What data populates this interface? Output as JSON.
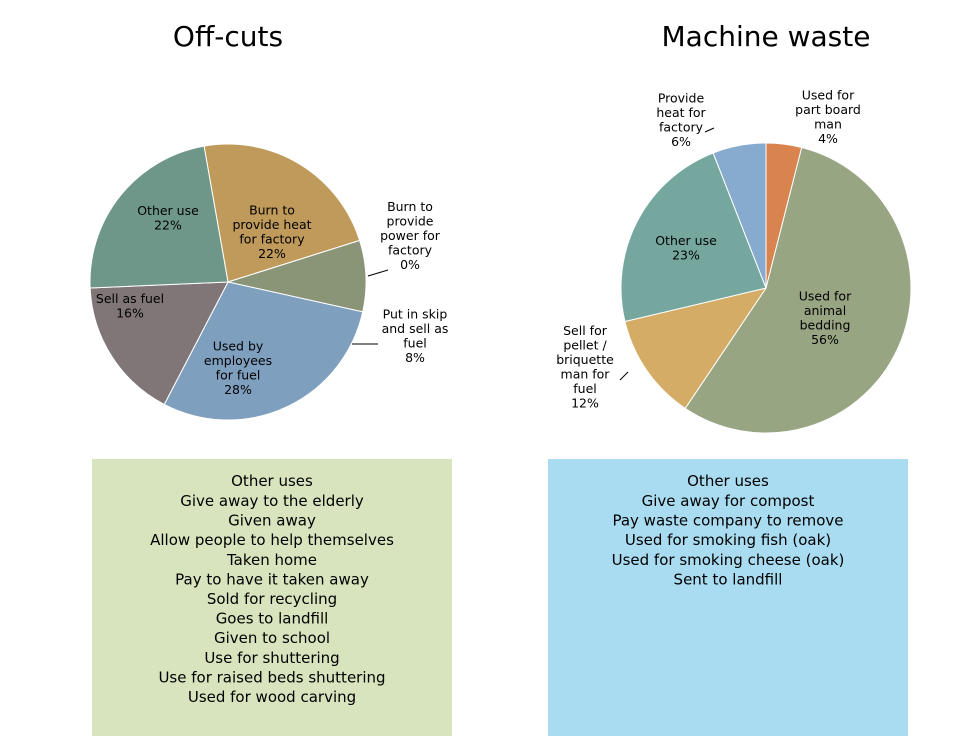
{
  "chart_data": [
    {
      "type": "pie",
      "title": "Off-cuts",
      "categories": [
        "Burn to provide heat for factory",
        "Burn to provide power for factory",
        "Put in skip and sell as fuel",
        "Used by employees for fuel",
        "Sell as fuel",
        "Other use"
      ],
      "values": [
        22,
        0,
        8,
        28,
        16,
        22
      ],
      "value_labels": [
        "22%",
        "0%",
        "8%",
        "28%",
        "16%",
        "22%"
      ],
      "colors": [
        "#bf9a5a",
        "#a6a6a6",
        "#8a9477",
        "#7f9fbf",
        "#807678",
        "#6e978a"
      ]
    },
    {
      "type": "pie",
      "title": "Machine waste",
      "categories": [
        "Used for part board man",
        "Used for animal bedding",
        "Sell for pellet / briquette man for fuel",
        "Other use",
        "Provide heat for factory"
      ],
      "values": [
        4,
        56,
        12,
        23,
        6
      ],
      "value_labels": [
        "4%",
        "56%",
        "12%",
        "23%",
        "6%"
      ],
      "colors": [
        "#d9834f",
        "#98a583",
        "#d4ac66",
        "#75a79f",
        "#86abce"
      ]
    }
  ],
  "boxes": [
    {
      "title": "Other uses",
      "items": [
        "Give away to the elderly",
        "Given away",
        "Allow people to help themselves",
        "Taken home",
        "Pay to have it taken away",
        "Sold for recycling",
        "Goes to landfill",
        "Given to school",
        "Use for shuttering",
        "Use for raised beds shuttering",
        "Used for wood carving"
      ]
    },
    {
      "title": "Other uses",
      "items": [
        "Give away for compost",
        "Pay waste company to remove",
        "Used for smoking fish (oak)",
        "Used for smoking cheese (oak)",
        "Sent to landfill"
      ]
    }
  ]
}
